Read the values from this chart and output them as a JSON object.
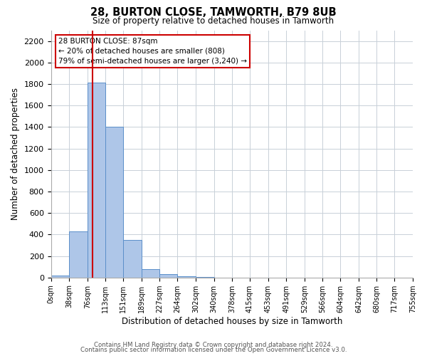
{
  "title": "28, BURTON CLOSE, TAMWORTH, B79 8UB",
  "subtitle": "Size of property relative to detached houses in Tamworth",
  "xlabel": "Distribution of detached houses by size in Tamworth",
  "ylabel": "Number of detached properties",
  "bin_edges": [
    0,
    38,
    76,
    113,
    151,
    189,
    227,
    264,
    302,
    340,
    378,
    415,
    453,
    491,
    529,
    566,
    604,
    642,
    680,
    717,
    755
  ],
  "bar_heights": [
    20,
    430,
    1810,
    1400,
    350,
    80,
    30,
    10,
    5,
    0,
    0,
    0,
    0,
    0,
    0,
    0,
    0,
    0,
    0,
    0
  ],
  "bar_color": "#aec6e8",
  "bar_edge_color": "#5b8fc9",
  "property_value": 87,
  "red_line_color": "#cc0000",
  "annotation_line1": "28 BURTON CLOSE: 87sqm",
  "annotation_line2": "← 20% of detached houses are smaller (808)",
  "annotation_line3": "79% of semi-detached houses are larger (3,240) →",
  "annotation_box_color": "#ffffff",
  "annotation_box_edge": "#cc0000",
  "ylim": [
    0,
    2300
  ],
  "yticks": [
    0,
    200,
    400,
    600,
    800,
    1000,
    1200,
    1400,
    1600,
    1800,
    2000,
    2200
  ],
  "tick_labels": [
    "0sqm",
    "38sqm",
    "76sqm",
    "113sqm",
    "151sqm",
    "189sqm",
    "227sqm",
    "264sqm",
    "302sqm",
    "340sqm",
    "378sqm",
    "415sqm",
    "453sqm",
    "491sqm",
    "529sqm",
    "566sqm",
    "604sqm",
    "642sqm",
    "680sqm",
    "717sqm",
    "755sqm"
  ],
  "footer_line1": "Contains HM Land Registry data © Crown copyright and database right 2024.",
  "footer_line2": "Contains public sector information licensed under the Open Government Licence v3.0.",
  "background_color": "#ffffff",
  "grid_color": "#c8d0d8"
}
